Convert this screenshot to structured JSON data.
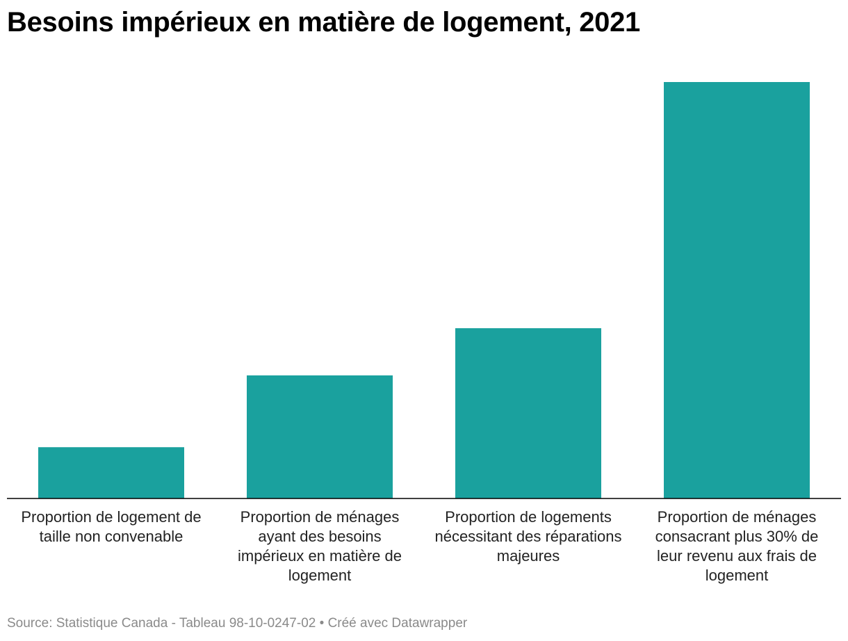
{
  "title": "Besoins impérieux en matière de logement, 2021",
  "footer": {
    "source": "Source: Statistique Canada - Tableau 98-10-0247-02",
    "separator": " • ",
    "credit": "Créé avec Datawrapper"
  },
  "colors": {
    "bar": "#1aa19e",
    "baseline": "#000000"
  },
  "chart_data": {
    "type": "bar",
    "title": "Besoins impérieux en matière de logement, 2021",
    "xlabel": "",
    "ylabel": "",
    "categories": [
      "Proportion de logement de taille non convenable",
      "Proportion de ménages ayant des besoins impérieux en matière de logement",
      "Proportion de logements nécessitant des réparations majeures",
      "Proportion de ménages consacrant plus 30% de leur revenu aux frais de logement"
    ],
    "values": [
      2.5,
      6.0,
      8.3,
      20.3
    ],
    "ylim": [
      0,
      20.3
    ],
    "grid": false,
    "legend": "none"
  }
}
